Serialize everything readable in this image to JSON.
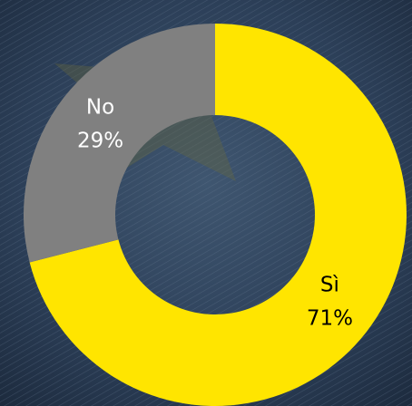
{
  "chart_data": {
    "type": "donut",
    "categories": [
      "Sì",
      "No"
    ],
    "values": [
      71,
      29
    ],
    "value_labels": [
      "71%",
      "29%"
    ],
    "colors": [
      "#ffe500",
      "#808080"
    ]
  }
}
